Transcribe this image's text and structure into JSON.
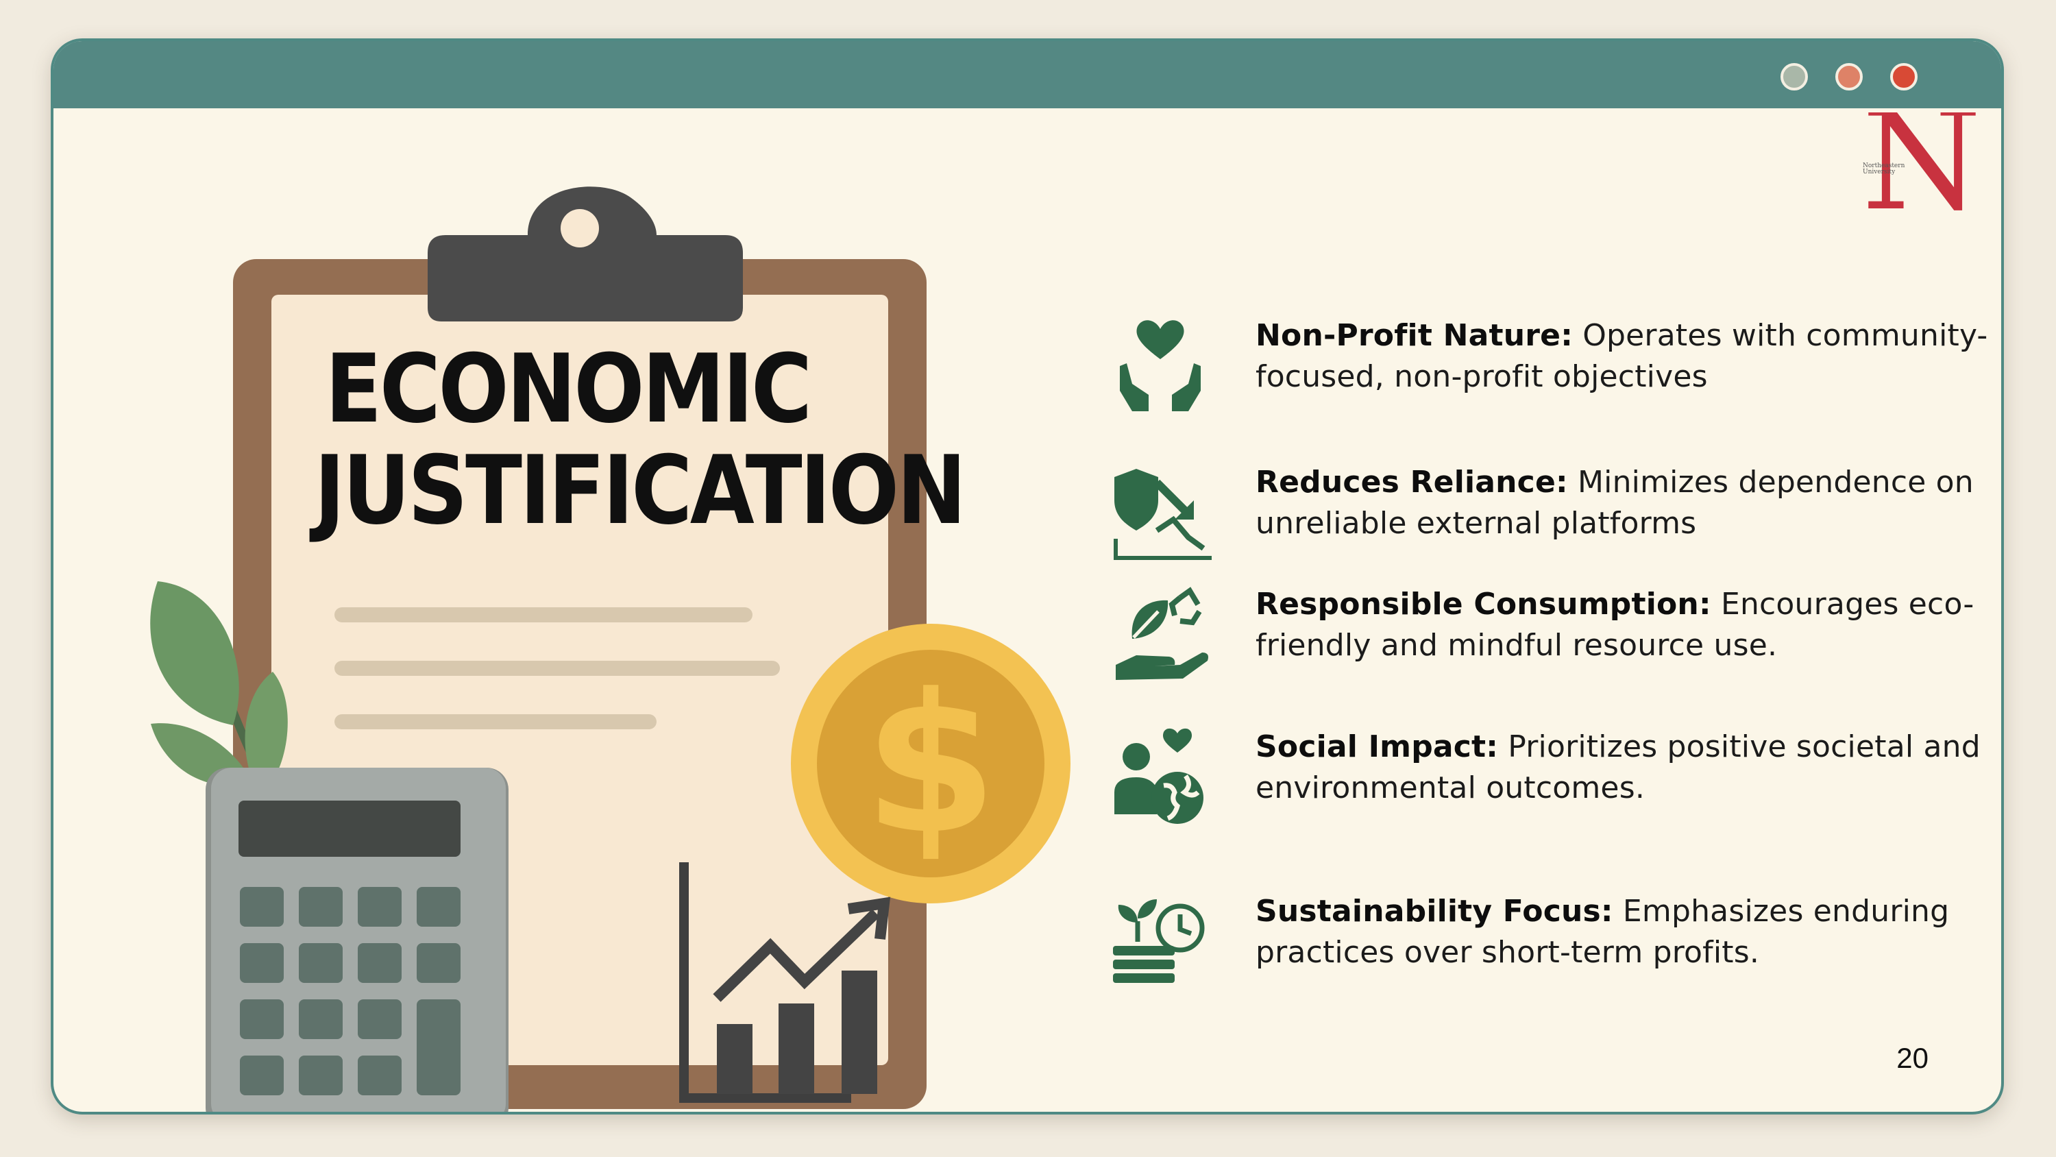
{
  "slide": {
    "title_line1": "ECONOMIC",
    "title_line2": "JUSTIFICATION",
    "logo_letter": "N",
    "logo_subtext": "Northeastern University",
    "page_number": "20"
  },
  "items": [
    {
      "icon": "hands-heart-icon",
      "title": "Non-Profit Nature:",
      "text": "Operates with community-focused, non-profit objectives"
    },
    {
      "icon": "shield-decline-chart-icon",
      "title": "Reduces Reliance:",
      "text": "Minimizes dependence on unreliable external platforms"
    },
    {
      "icon": "hand-leaf-recycle-icon",
      "title": "Responsible Consumption:",
      "text": "Encourages eco-friendly and mindful resource use."
    },
    {
      "icon": "person-globe-heart-icon",
      "title": "Social Impact:",
      "text": "Prioritizes positive societal and environmental outcomes."
    },
    {
      "icon": "plant-coins-clock-icon",
      "title": "Sustainability Focus:",
      "text": "Emphasizes enduring practices over short-term profits."
    }
  ],
  "colors": {
    "frame": "#548883",
    "background": "#fbf6e8",
    "icon_green": "#2f6a48",
    "logo_red": "#c8323f",
    "coin": "#e7b43c",
    "clipboard": "#946e52"
  }
}
